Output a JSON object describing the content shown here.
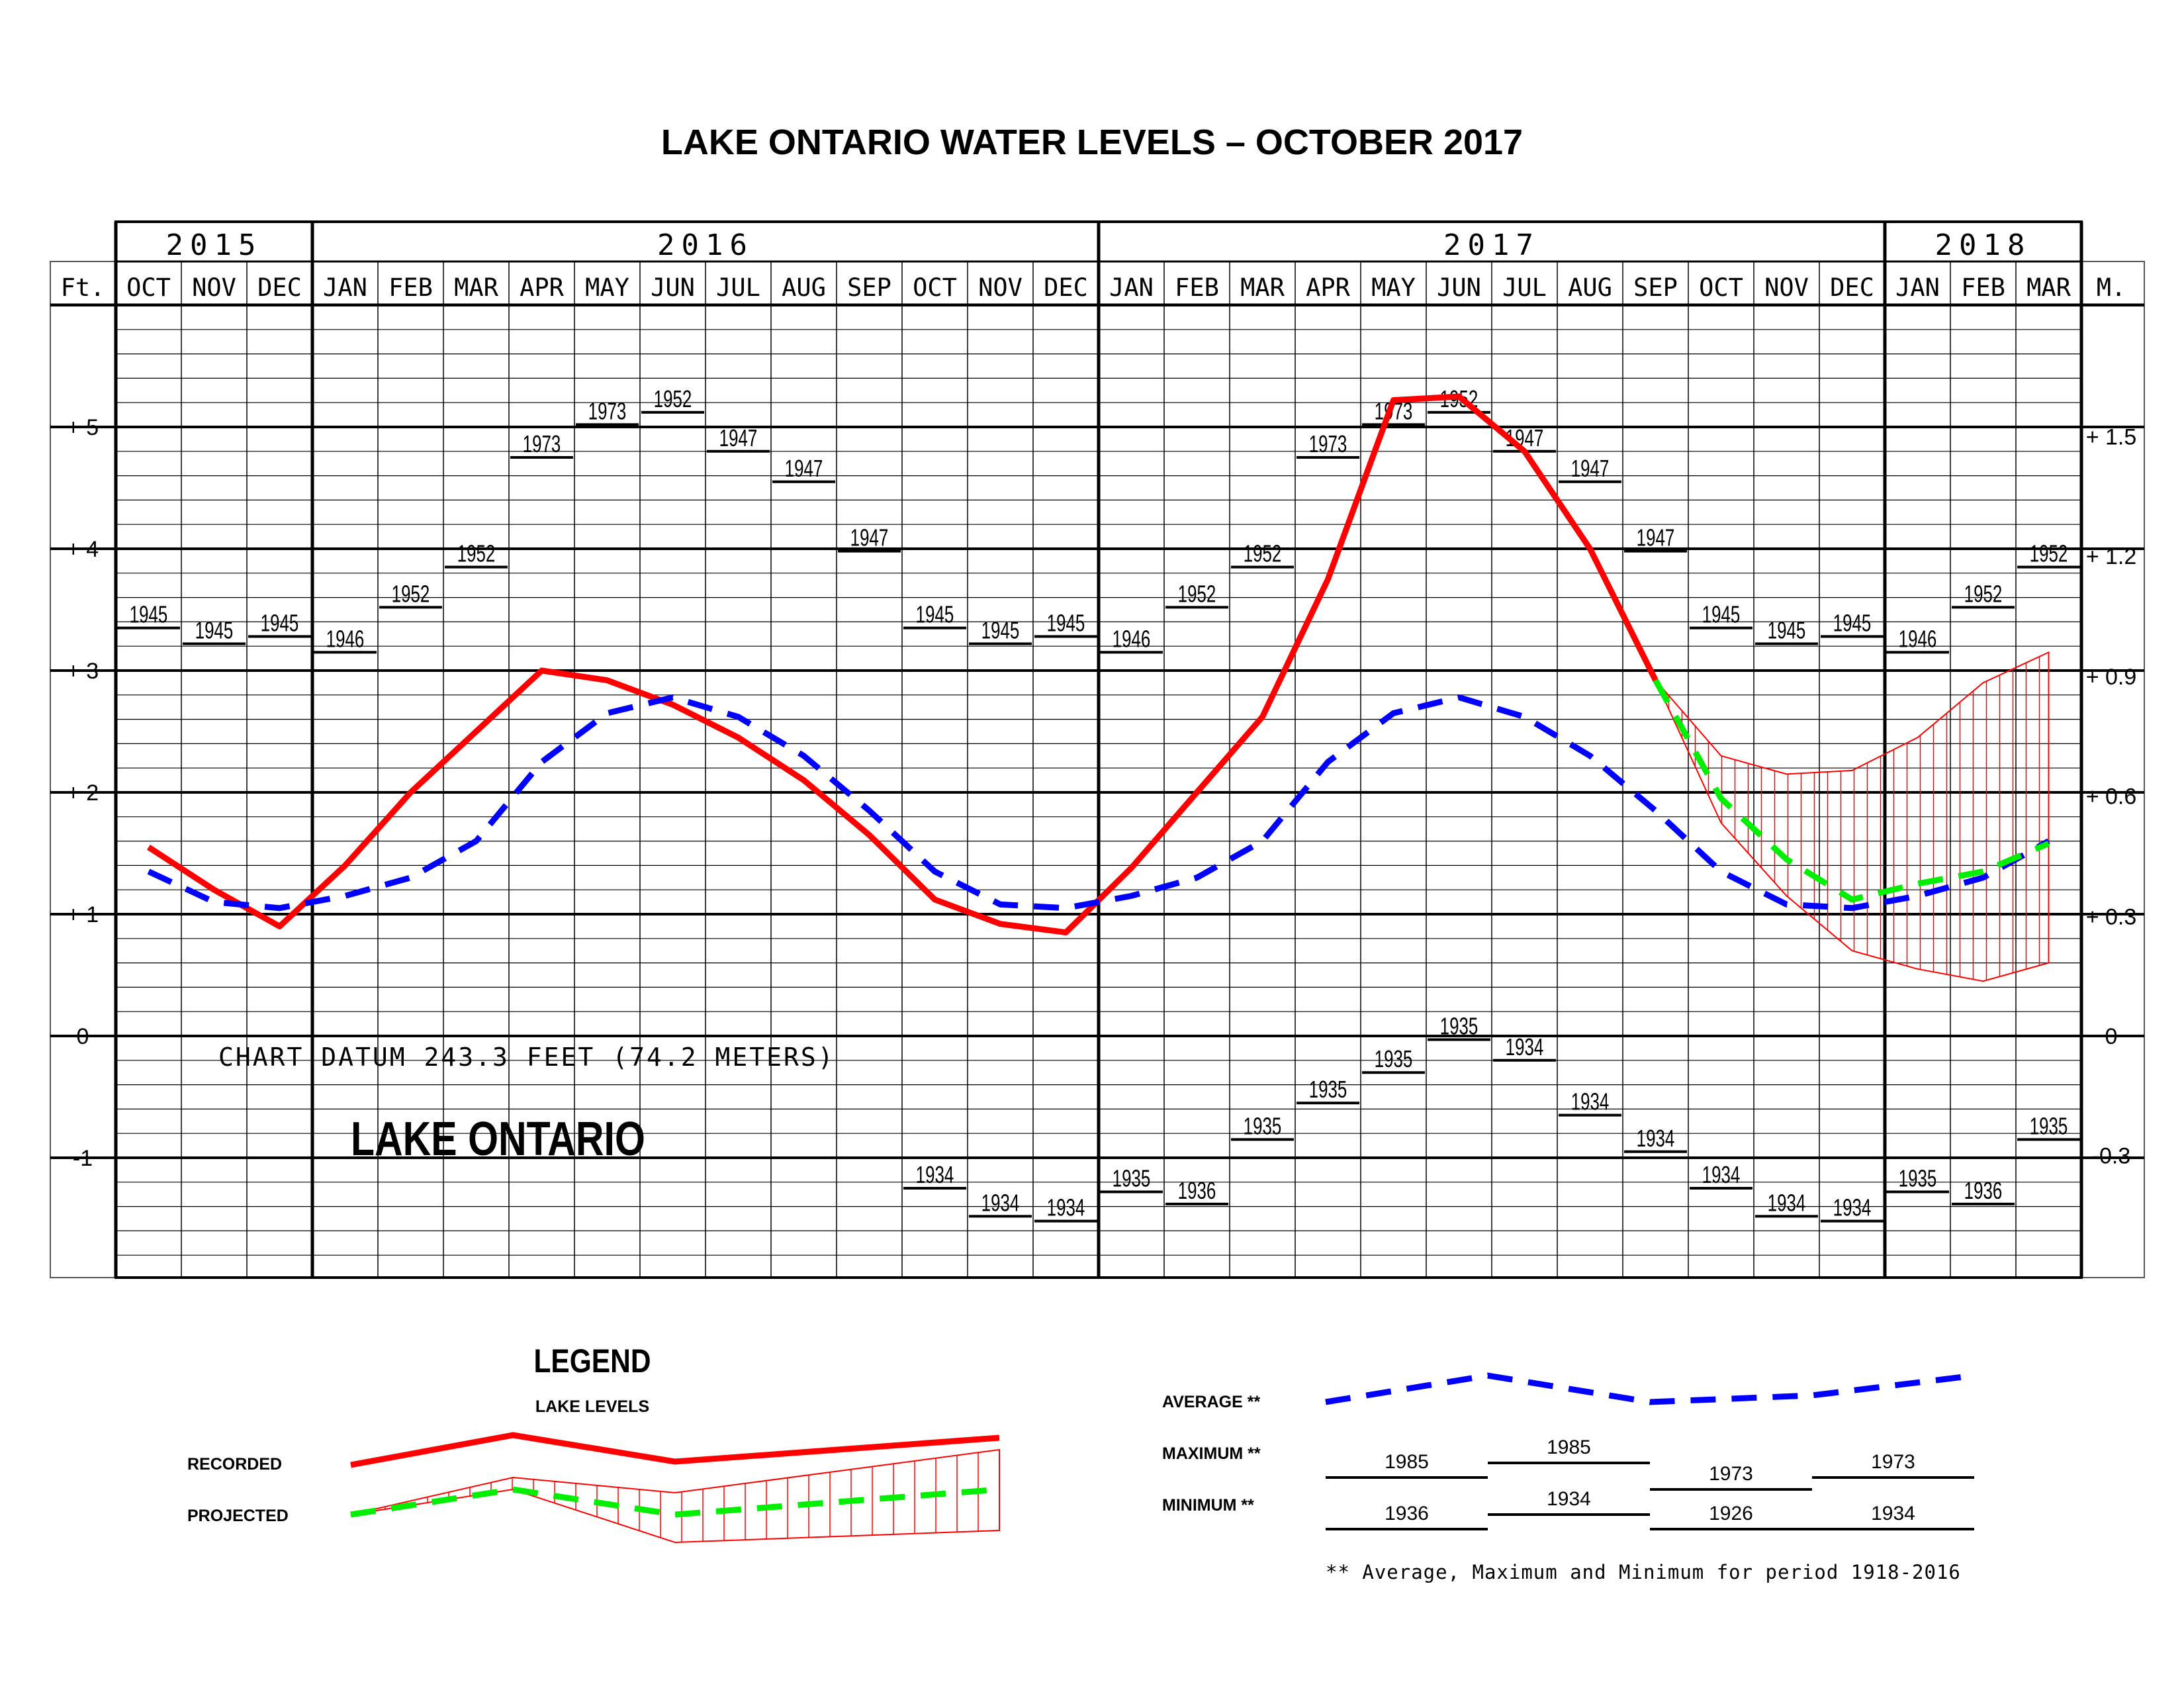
{
  "title": "LAKE ONTARIO  WATER LEVELS – OCTOBER 2017",
  "years": [
    "2015",
    "2016",
    "2017",
    "2018"
  ],
  "months": [
    "OCT",
    "NOV",
    "DEC",
    "JAN",
    "FEB",
    "MAR",
    "APR",
    "MAY",
    "JUN",
    "JUL",
    "AUG",
    "SEP",
    "OCT",
    "NOV",
    "DEC",
    "JAN",
    "FEB",
    "MAR",
    "APR",
    "MAY",
    "JUN",
    "JUL",
    "AUG",
    "SEP",
    "OCT",
    "NOV",
    "DEC",
    "JAN",
    "FEB",
    "MAR"
  ],
  "left_unit": "Ft.",
  "right_unit": "M.",
  "chart_datum": "CHART DATUM   243.3 FEET (74.2 METERS)",
  "lake_name": "LAKE ONTARIO",
  "colors": {
    "recorded": "#ff0000",
    "average": "#0000ff",
    "projected": "#00ee00",
    "range": "#ff0000",
    "grid": "#000000"
  },
  "chart_data": {
    "type": "line",
    "title": "LAKE ONTARIO  WATER LEVELS – OCTOBER 2017",
    "x": [
      "Oct 2015",
      "Nov 2015",
      "Dec 2015",
      "Jan 2016",
      "Feb 2016",
      "Mar 2016",
      "Apr 2016",
      "May 2016",
      "Jun 2016",
      "Jul 2016",
      "Aug 2016",
      "Sep 2016",
      "Oct 2016",
      "Nov 2016",
      "Dec 2016",
      "Jan 2017",
      "Feb 2017",
      "Mar 2017",
      "Apr 2017",
      "May 2017",
      "Jun 2017",
      "Jul 2017",
      "Aug 2017",
      "Sep 2017",
      "Oct 2017",
      "Nov 2017",
      "Dec 2017",
      "Jan 2018",
      "Feb 2018",
      "Mar 2018"
    ],
    "ylim": [
      -2,
      6
    ],
    "yticks_ft": [
      "-1",
      "0",
      "+ 1",
      "+ 2",
      "+ 3",
      "+ 4",
      "+ 5"
    ],
    "yticks_m": [
      {
        "ft": -0.98,
        "label": "-0.3"
      },
      {
        "ft": 0,
        "label": "0"
      },
      {
        "ft": 0.98,
        "label": "+ 0.3"
      },
      {
        "ft": 1.97,
        "label": "+ 0.6"
      },
      {
        "ft": 2.95,
        "label": "+ 0.9"
      },
      {
        "ft": 3.94,
        "label": "+ 1.2"
      },
      {
        "ft": 4.92,
        "label": "+ 1.5"
      }
    ],
    "series": [
      {
        "name": "RECORDED",
        "values": [
          1.55,
          1.2,
          0.9,
          1.4,
          2.0,
          2.5,
          3.0,
          2.92,
          2.72,
          2.45,
          2.1,
          1.65,
          1.12,
          0.92,
          0.85,
          1.38,
          2.0,
          2.62,
          3.75,
          5.22,
          5.25,
          4.8,
          4.0,
          2.92,
          null,
          null,
          null,
          null,
          null,
          null
        ]
      },
      {
        "name": "AVERAGE",
        "values": [
          1.35,
          1.1,
          1.05,
          1.15,
          1.3,
          1.6,
          2.25,
          2.65,
          2.78,
          2.62,
          2.3,
          1.85,
          1.35,
          1.08,
          1.05,
          1.15,
          1.3,
          1.6,
          2.25,
          2.65,
          2.78,
          2.62,
          2.3,
          1.85,
          1.35,
          1.08,
          1.05,
          1.15,
          1.3,
          1.6
        ]
      },
      {
        "name": "PROJECTED",
        "values": [
          null,
          null,
          null,
          null,
          null,
          null,
          null,
          null,
          null,
          null,
          null,
          null,
          null,
          null,
          null,
          null,
          null,
          null,
          null,
          null,
          null,
          null,
          null,
          2.92,
          1.95,
          1.45,
          1.12,
          1.25,
          1.35,
          1.58
        ]
      }
    ],
    "projection_range": {
      "start_month": 23,
      "upper": [
        2.92,
        2.3,
        2.15,
        2.18,
        2.45,
        2.9,
        3.15
      ],
      "lower": [
        2.92,
        1.75,
        1.15,
        0.7,
        0.55,
        0.45,
        0.6
      ]
    },
    "monthly_max": {
      "values": [
        3.35,
        3.22,
        3.28,
        3.15,
        3.52,
        3.85,
        4.75,
        5.02,
        5.12,
        4.8,
        4.55,
        3.98,
        3.35,
        3.22,
        3.28,
        3.15,
        3.52,
        3.85,
        4.75,
        5.02,
        5.12,
        4.8,
        4.55,
        3.98,
        3.35,
        3.22,
        3.28,
        3.15,
        3.52,
        3.85
      ],
      "years": [
        "1945",
        "1945",
        "1945",
        "1946",
        "1952",
        "1952",
        "1973",
        "1973",
        "1952",
        "1947",
        "1947",
        "1947",
        "1945",
        "1945",
        "1945",
        "1946",
        "1952",
        "1952",
        "1973",
        "1973",
        "1952",
        "1947",
        "1947",
        "1947",
        "1945",
        "1945",
        "1945",
        "1946",
        "1952",
        "1952"
      ]
    },
    "monthly_min": {
      "values": [
        null,
        null,
        null,
        null,
        null,
        null,
        null,
        null,
        null,
        null,
        null,
        null,
        -1.25,
        -1.48,
        -1.52,
        -1.28,
        -1.38,
        -0.85,
        -0.55,
        -0.3,
        -0.03,
        -0.2,
        -0.65,
        -0.95,
        -1.25,
        -1.48,
        -1.52,
        -1.28,
        -1.38,
        -0.85
      ],
      "years": [
        null,
        null,
        null,
        null,
        null,
        null,
        null,
        null,
        null,
        null,
        null,
        null,
        "1934",
        "1934",
        "1934",
        "1935",
        "1936",
        "1935",
        "1935",
        "1935",
        "1935",
        "1934",
        "1934",
        "1934",
        "1934",
        "1934",
        "1934",
        "1935",
        "1936",
        "1935"
      ]
    }
  },
  "legend": {
    "title": "LEGEND",
    "subtitle": "LAKE LEVELS",
    "recorded_label": "RECORDED",
    "projected_label": "PROJECTED",
    "average_label": "AVERAGE **",
    "maximum_label": "MAXIMUM **",
    "minimum_label": "MINIMUM **",
    "max_years": [
      "1985",
      "1985",
      "1973",
      "1973"
    ],
    "min_years": [
      "1936",
      "1934",
      "1926",
      "1934"
    ],
    "note": "** Average, Maximum and Minimum for period 1918-2016"
  }
}
